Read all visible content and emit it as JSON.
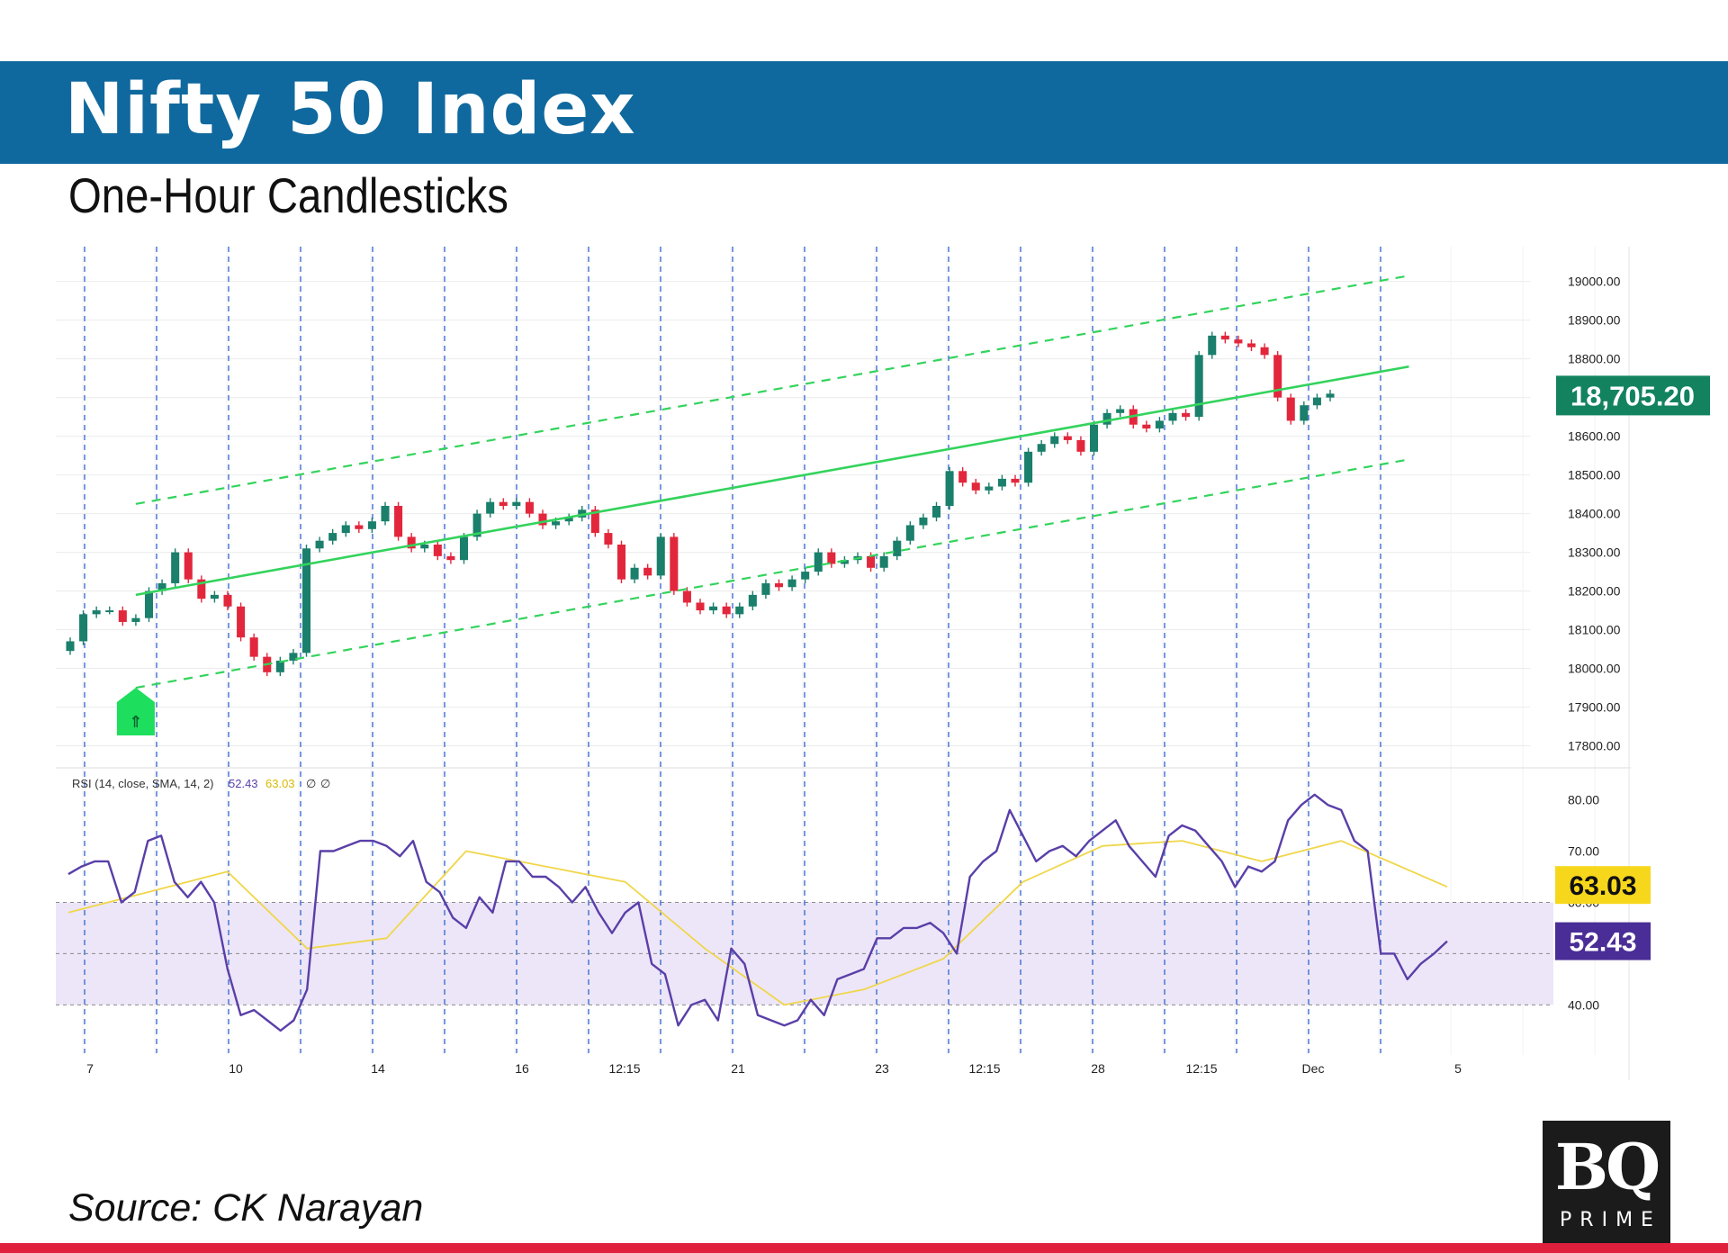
{
  "header": {
    "title": "Nifty 50 Index",
    "subtitle": "One-Hour Candlesticks"
  },
  "source": "Source: CK Narayan",
  "logo": {
    "main": "BQ",
    "sub": "PRIME"
  },
  "colors": {
    "header_bg": "#10699e",
    "bullish": "#1a7f6b",
    "bearish": "#e2273c",
    "channel": "#33d35c",
    "rsi_line": "#5a3fa8",
    "rsi_ma": "#f0d64a",
    "rsi_band": "#ede6f8",
    "price_badge": "#13835f",
    "rsi_ma_badge": "#f7d71c",
    "rsi_badge": "#4a2d96",
    "footer_line": "#e0203c",
    "grid": "#ececec",
    "vline": "#3f6ed0",
    "signal_marker": "#1ede5e"
  },
  "chart_data": [
    {
      "type": "candlestick",
      "title": "Nifty 50 Index",
      "subtitle": "One-Hour Candlesticks",
      "x_tick_labels": [
        "7",
        "10",
        "14",
        "16",
        "12:15",
        "21",
        "23",
        "12:15",
        "28",
        "12:15",
        "Dec",
        "5"
      ],
      "y_tick_labels": [
        "19000.00",
        "18900.00",
        "18800.00",
        "18700.00",
        "18600.00",
        "18500.00",
        "18400.00",
        "18300.00",
        "18200.00",
        "18100.00",
        "18000.00",
        "17900.00",
        "17800.00"
      ],
      "ylim": [
        17750,
        19090
      ],
      "last_price_label": "18,705.20",
      "signal_marker": "⇑",
      "close_path": [
        [
          0,
          18070
        ],
        [
          1,
          18140
        ],
        [
          2,
          18150
        ],
        [
          3,
          18150
        ],
        [
          4,
          18120
        ],
        [
          5,
          18130
        ],
        [
          6,
          18200
        ],
        [
          7,
          18220
        ],
        [
          8,
          18300
        ],
        [
          9,
          18230
        ],
        [
          10,
          18180
        ],
        [
          11,
          18190
        ],
        [
          12,
          18160
        ],
        [
          13,
          18080
        ],
        [
          14,
          18030
        ],
        [
          15,
          17990
        ],
        [
          16,
          18020
        ],
        [
          17,
          18040
        ],
        [
          18,
          18310
        ],
        [
          19,
          18330
        ],
        [
          20,
          18350
        ],
        [
          21,
          18370
        ],
        [
          22,
          18360
        ],
        [
          23,
          18380
        ],
        [
          24,
          18420
        ],
        [
          25,
          18340
        ],
        [
          26,
          18310
        ],
        [
          27,
          18320
        ],
        [
          28,
          18290
        ],
        [
          29,
          18280
        ],
        [
          30,
          18340
        ],
        [
          31,
          18400
        ],
        [
          32,
          18430
        ],
        [
          33,
          18420
        ],
        [
          34,
          18430
        ],
        [
          35,
          18400
        ],
        [
          36,
          18370
        ],
        [
          37,
          18380
        ],
        [
          38,
          18390
        ],
        [
          39,
          18410
        ],
        [
          40,
          18350
        ],
        [
          41,
          18320
        ],
        [
          42,
          18230
        ],
        [
          43,
          18260
        ],
        [
          44,
          18240
        ],
        [
          45,
          18340
        ],
        [
          46,
          18200
        ],
        [
          47,
          18170
        ],
        [
          48,
          18150
        ],
        [
          49,
          18160
        ],
        [
          50,
          18140
        ],
        [
          51,
          18160
        ],
        [
          52,
          18190
        ],
        [
          53,
          18220
        ],
        [
          54,
          18210
        ],
        [
          55,
          18230
        ],
        [
          56,
          18250
        ],
        [
          57,
          18300
        ],
        [
          58,
          18270
        ],
        [
          59,
          18280
        ],
        [
          60,
          18290
        ],
        [
          61,
          18260
        ],
        [
          62,
          18290
        ],
        [
          63,
          18330
        ],
        [
          64,
          18370
        ],
        [
          65,
          18390
        ],
        [
          66,
          18420
        ],
        [
          67,
          18510
        ],
        [
          68,
          18480
        ],
        [
          69,
          18460
        ],
        [
          70,
          18470
        ],
        [
          71,
          18490
        ],
        [
          72,
          18480
        ],
        [
          73,
          18560
        ],
        [
          74,
          18580
        ],
        [
          75,
          18600
        ],
        [
          76,
          18590
        ],
        [
          77,
          18560
        ],
        [
          78,
          18630
        ],
        [
          79,
          18660
        ],
        [
          80,
          18670
        ],
        [
          81,
          18630
        ],
        [
          82,
          18620
        ],
        [
          83,
          18640
        ],
        [
          84,
          18660
        ],
        [
          85,
          18650
        ],
        [
          86,
          18810
        ],
        [
          87,
          18860
        ],
        [
          88,
          18850
        ],
        [
          89,
          18840
        ],
        [
          90,
          18830
        ],
        [
          91,
          18810
        ],
        [
          92,
          18700
        ],
        [
          93,
          18640
        ],
        [
          94,
          18680
        ],
        [
          95,
          18700
        ],
        [
          96,
          18710
        ]
      ],
      "channel": {
        "center": {
          "start": [
            5,
            18190
          ],
          "end": [
            102,
            18780
          ],
          "style": "solid"
        },
        "upper": {
          "start": [
            5,
            18425
          ],
          "end": [
            102,
            19015
          ],
          "style": "dashed"
        },
        "lower": {
          "start": [
            5,
            17950
          ],
          "end": [
            102,
            18540
          ],
          "style": "dashed"
        }
      }
    },
    {
      "type": "line",
      "title": "RSI (14, close, SMA, 14, 2)",
      "legend_values": [
        "52.43",
        "63.03",
        "∅",
        "∅"
      ],
      "y_tick_labels": [
        "80.00",
        "70.00",
        "60.00",
        "40.00"
      ],
      "ylim": [
        32,
        85
      ],
      "band": [
        40,
        60
      ],
      "midline": 50,
      "series": [
        {
          "values": [
            [
              0,
              65.5
            ],
            [
              1,
              67
            ],
            [
              2,
              68
            ],
            [
              3,
              68
            ],
            [
              4,
              60
            ],
            [
              5,
              62
            ],
            [
              6,
              72
            ],
            [
              7,
              73
            ],
            [
              8,
              64
            ],
            [
              9,
              61
            ],
            [
              10,
              64
            ],
            [
              11,
              60
            ],
            [
              12,
              47
            ],
            [
              13,
              38
            ],
            [
              14,
              39
            ],
            [
              15,
              37
            ],
            [
              16,
              35
            ],
            [
              17,
              37
            ],
            [
              18,
              43
            ],
            [
              19,
              70
            ],
            [
              20,
              70
            ],
            [
              21,
              71
            ],
            [
              22,
              72
            ],
            [
              23,
              72
            ],
            [
              24,
              71
            ],
            [
              25,
              69
            ],
            [
              26,
              72
            ],
            [
              27,
              64
            ],
            [
              28,
              62
            ],
            [
              29,
              57
            ],
            [
              30,
              55
            ],
            [
              31,
              61
            ],
            [
              32,
              58
            ],
            [
              33,
              68
            ],
            [
              34,
              68
            ],
            [
              35,
              65
            ],
            [
              36,
              65
            ],
            [
              37,
              63
            ],
            [
              38,
              60
            ],
            [
              39,
              63
            ],
            [
              40,
              58
            ],
            [
              41,
              54
            ],
            [
              42,
              58
            ],
            [
              43,
              60
            ],
            [
              44,
              48
            ],
            [
              45,
              46
            ],
            [
              46,
              36
            ],
            [
              47,
              40
            ],
            [
              48,
              41
            ],
            [
              49,
              37
            ],
            [
              50,
              51
            ],
            [
              51,
              48
            ],
            [
              52,
              38
            ],
            [
              53,
              37
            ],
            [
              54,
              36
            ],
            [
              55,
              37
            ],
            [
              56,
              41
            ],
            [
              57,
              38
            ],
            [
              58,
              45
            ],
            [
              59,
              46
            ],
            [
              60,
              47
            ],
            [
              61,
              53
            ],
            [
              62,
              53
            ],
            [
              63,
              55
            ],
            [
              64,
              55
            ],
            [
              65,
              56
            ],
            [
              66,
              54
            ],
            [
              67,
              50
            ],
            [
              68,
              65
            ],
            [
              69,
              68
            ],
            [
              70,
              70
            ],
            [
              71,
              78
            ],
            [
              72,
              73
            ],
            [
              73,
              68
            ],
            [
              74,
              70
            ],
            [
              75,
              71
            ],
            [
              76,
              69
            ],
            [
              77,
              72
            ],
            [
              78,
              74
            ],
            [
              79,
              76
            ],
            [
              80,
              71
            ],
            [
              81,
              68
            ],
            [
              82,
              65
            ],
            [
              83,
              73
            ],
            [
              84,
              75
            ],
            [
              85,
              74
            ],
            [
              86,
              71
            ],
            [
              87,
              68
            ],
            [
              88,
              63
            ],
            [
              89,
              67
            ],
            [
              90,
              66
            ],
            [
              91,
              68
            ],
            [
              92,
              76
            ],
            [
              93,
              79
            ],
            [
              94,
              81
            ],
            [
              95,
              79
            ],
            [
              96,
              78
            ],
            [
              97,
              72
            ],
            [
              98,
              70
            ],
            [
              99,
              50
            ],
            [
              100,
              50
            ],
            [
              101,
              45
            ],
            [
              102,
              48
            ],
            [
              103,
              50
            ],
            [
              104,
              52.43
            ]
          ]
        },
        {
          "values": [
            [
              0,
              58
            ],
            [
              6,
              62
            ],
            [
              12,
              66
            ],
            [
              18,
              51
            ],
            [
              24,
              53
            ],
            [
              30,
              70
            ],
            [
              36,
              67
            ],
            [
              42,
              64
            ],
            [
              48,
              51
            ],
            [
              54,
              40
            ],
            [
              60,
              43
            ],
            [
              66,
              49
            ],
            [
              72,
              64
            ],
            [
              78,
              71
            ],
            [
              84,
              72
            ],
            [
              90,
              68
            ],
            [
              96,
              72
            ],
            [
              104,
              63.03
            ]
          ]
        }
      ]
    }
  ]
}
